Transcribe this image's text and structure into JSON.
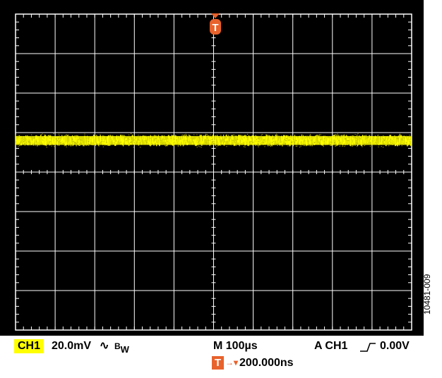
{
  "chart_data": {
    "type": "line",
    "title": "",
    "grid": true,
    "background": "#000000",
    "grid_color": "#ffffff",
    "trace_color": "#ffff00",
    "trigger_color": "#e8622c",
    "divisions": {
      "horizontal": 10,
      "vertical": 8
    },
    "series": [
      {
        "channel": "CH1",
        "level_div": 0.8,
        "noise_peak_to_peak_div": 0.3,
        "description": "flat noisy trace"
      }
    ],
    "trigger_marker_div": 5
  },
  "status": {
    "channel_label": "CH1",
    "scale": "20.0mV",
    "coupling_symbol": "∿",
    "bw_b": "B",
    "bw_w": "W",
    "timebase": "M 100µs",
    "trigger": "A  CH1",
    "trigger_slope_icon": "rising-edge-icon",
    "trigger_level": "0.00V",
    "trigger_marker_label": "T",
    "trigger_delay_arrow": "→▾",
    "trigger_delay": "200.000ns"
  },
  "figure_id": "10481-009"
}
